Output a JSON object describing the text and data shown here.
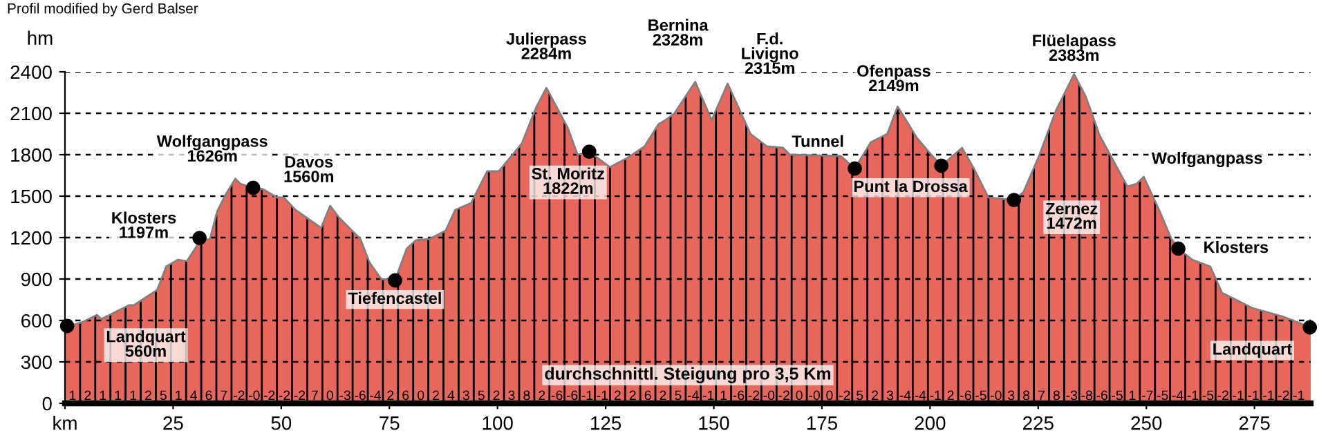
{
  "chart_data": [
    {
      "type": "area",
      "ylabel": "hm",
      "xlim": [
        0,
        288
      ],
      "ylim": [
        0,
        2400
      ],
      "xticks": [
        {
          "value": 0,
          "label": "km"
        },
        25,
        50,
        75,
        100,
        125,
        150,
        175,
        200,
        225,
        250,
        275
      ],
      "yticks": [
        0,
        300,
        600,
        900,
        1200,
        1500,
        1800,
        2100,
        2400
      ],
      "grid": "y",
      "series": [
        {
          "color": "#e8675c",
          "x": [
            0,
            4.2,
            7.4,
            8.4,
            11.6,
            14.8,
            15.9,
            21.3,
            23.4,
            26.1,
            28.2,
            31.1,
            33.5,
            35.2,
            37.3,
            39.4,
            40.5,
            43.5,
            45.8,
            49,
            50.6,
            53.3,
            59.2,
            61.3,
            63.5,
            68.3,
            70.4,
            73.1,
            76.3,
            79,
            81.1,
            84.3,
            88,
            90.2,
            93.9,
            97.6,
            100.3,
            105.6,
            108.9,
            111.3,
            116.3,
            118.5,
            121.2,
            126,
            130.2,
            134,
            137.2,
            138.8,
            140.9,
            145.7,
            149.5,
            153.2,
            158.5,
            162.3,
            166,
            167.6,
            179.4,
            182.6,
            186.3,
            190.1,
            192.5,
            197,
            199.7,
            202.6,
            207.4,
            210.3,
            213.5,
            219.4,
            221.6,
            225.3,
            229.1,
            233.3,
            236,
            239.2,
            243,
            245.6,
            247.8,
            249.4,
            253.1,
            255.8,
            257.4,
            260.6,
            264.8,
            267.5,
            274.5,
            281.4,
            288
          ],
          "values": [
            550,
            590,
            640,
            610,
            660,
            710,
            710,
            820,
            990,
            1040,
            1030,
            1170,
            1190,
            1390,
            1520,
            1626,
            1590,
            1560,
            1550,
            1490,
            1490,
            1400,
            1270,
            1430,
            1340,
            1190,
            1020,
            900,
            890,
            1120,
            1180,
            1190,
            1250,
            1400,
            1450,
            1680,
            1680,
            1880,
            2140,
            2284,
            1990,
            1800,
            1822,
            1710,
            1780,
            1860,
            2020,
            2050,
            2100,
            2328,
            2050,
            2315,
            1950,
            1860,
            1850,
            1800,
            1790,
            1700,
            1890,
            1950,
            2149,
            1920,
            1820,
            1720,
            1850,
            1690,
            1490,
            1472,
            1530,
            1800,
            2120,
            2383,
            2220,
            1940,
            1720,
            1570,
            1590,
            1640,
            1390,
            1190,
            1120,
            1040,
            990,
            800,
            690,
            630,
            550
          ]
        },
        {
          "type": "scatter",
          "color": "#000000",
          "marker": "circle",
          "x": [
            0.5,
            31.1,
            43.5,
            76.3,
            121.2,
            182.6,
            202.6,
            219.4,
            257.4,
            287.8
          ],
          "values": [
            560,
            1197,
            1560,
            890,
            1822,
            1700,
            1720,
            1472,
            1120,
            550
          ]
        }
      ],
      "ref_lines": [
        {
          "axis": "x",
          "value": 3.5
        },
        {
          "axis": "x",
          "value": 7
        },
        {
          "axis": "x",
          "value": 10.5
        },
        {
          "axis": "x",
          "value": 14
        },
        {
          "axis": "x",
          "value": 17.5
        },
        {
          "axis": "x",
          "value": 21
        },
        {
          "axis": "x",
          "value": 24.5
        },
        {
          "axis": "x",
          "value": 28
        },
        {
          "axis": "x",
          "value": 31.5
        },
        {
          "axis": "x",
          "value": 35
        },
        {
          "axis": "x",
          "value": 38.5
        },
        {
          "axis": "x",
          "value": 42
        },
        {
          "axis": "x",
          "value": 45.5
        },
        {
          "axis": "x",
          "value": 49
        },
        {
          "axis": "x",
          "value": 52.5
        },
        {
          "axis": "x",
          "value": 56
        },
        {
          "axis": "x",
          "value": 59.5
        },
        {
          "axis": "x",
          "value": 63
        },
        {
          "axis": "x",
          "value": 66.5
        },
        {
          "axis": "x",
          "value": 70
        },
        {
          "axis": "x",
          "value": 73.5
        },
        {
          "axis": "x",
          "value": 77
        },
        {
          "axis": "x",
          "value": 80.5
        },
        {
          "axis": "x",
          "value": 84
        },
        {
          "axis": "x",
          "value": 87.5
        },
        {
          "axis": "x",
          "value": 91
        },
        {
          "axis": "x",
          "value": 94.5
        },
        {
          "axis": "x",
          "value": 98
        },
        {
          "axis": "x",
          "value": 101.5
        },
        {
          "axis": "x",
          "value": 105
        },
        {
          "axis": "x",
          "value": 108.5
        },
        {
          "axis": "x",
          "value": 112
        },
        {
          "axis": "x",
          "value": 115.5
        },
        {
          "axis": "x",
          "value": 119
        },
        {
          "axis": "x",
          "value": 122.5
        },
        {
          "axis": "x",
          "value": 126
        },
        {
          "axis": "x",
          "value": 129.5
        },
        {
          "axis": "x",
          "value": 133
        },
        {
          "axis": "x",
          "value": 136.5
        },
        {
          "axis": "x",
          "value": 140
        },
        {
          "axis": "x",
          "value": 143.5
        },
        {
          "axis": "x",
          "value": 147
        },
        {
          "axis": "x",
          "value": 150.5
        },
        {
          "axis": "x",
          "value": 154
        },
        {
          "axis": "x",
          "value": 157.5
        },
        {
          "axis": "x",
          "value": 161
        },
        {
          "axis": "x",
          "value": 164.5
        },
        {
          "axis": "x",
          "value": 168
        },
        {
          "axis": "x",
          "value": 171.5
        },
        {
          "axis": "x",
          "value": 175
        },
        {
          "axis": "x",
          "value": 178.5
        },
        {
          "axis": "x",
          "value": 182
        },
        {
          "axis": "x",
          "value": 185.5
        },
        {
          "axis": "x",
          "value": 189
        },
        {
          "axis": "x",
          "value": 192.5
        },
        {
          "axis": "x",
          "value": 196
        },
        {
          "axis": "x",
          "value": 199.5
        },
        {
          "axis": "x",
          "value": 203
        },
        {
          "axis": "x",
          "value": 206.5
        },
        {
          "axis": "x",
          "value": 210
        },
        {
          "axis": "x",
          "value": 213.5
        },
        {
          "axis": "x",
          "value": 217
        },
        {
          "axis": "x",
          "value": 220.5
        },
        {
          "axis": "x",
          "value": 224
        },
        {
          "axis": "x",
          "value": 227.5
        },
        {
          "axis": "x",
          "value": 231
        },
        {
          "axis": "x",
          "value": 234.5
        },
        {
          "axis": "x",
          "value": 238
        },
        {
          "axis": "x",
          "value": 241.5
        },
        {
          "axis": "x",
          "value": 245
        },
        {
          "axis": "x",
          "value": 248.5
        },
        {
          "axis": "x",
          "value": 252
        },
        {
          "axis": "x",
          "value": 255.5
        },
        {
          "axis": "x",
          "value": 259
        },
        {
          "axis": "x",
          "value": 262.5
        },
        {
          "axis": "x",
          "value": 266
        },
        {
          "axis": "x",
          "value": 269.5
        },
        {
          "axis": "x",
          "value": 273
        },
        {
          "axis": "x",
          "value": 276.5
        },
        {
          "axis": "x",
          "value": 280
        },
        {
          "axis": "x",
          "value": 283.5
        }
      ],
      "annotations": [
        "Profil modified by Gerd Balser",
        "durchschnittl. Steigung pro 3,5 Km",
        {
          "text": "Landquart\n560m",
          "x": 0.5,
          "y": 560
        },
        {
          "text": "Klosters\n1197m",
          "x": 31.1,
          "y": 1197
        },
        {
          "text": "Wolfgangpass\n1626m",
          "x": 39.4,
          "y": 1626
        },
        {
          "text": "Davos\n1560m",
          "x": 43.5,
          "y": 1560
        },
        {
          "text": "Tiefencastel",
          "x": 76.3,
          "y": 890
        },
        {
          "text": "Julierpass\n2284m",
          "x": 111.3,
          "y": 2284
        },
        {
          "text": "St. Moritz\n1822m",
          "x": 121.2,
          "y": 1822
        },
        {
          "text": "Bernina\n2328m",
          "x": 145.7,
          "y": 2328
        },
        {
          "text": "F.d.\nLivigno\n2315m",
          "x": 153.2,
          "y": 2315
        },
        {
          "text": "Ofenpass\n2149m",
          "x": 192.5,
          "y": 2149
        },
        {
          "text": "Tunnel",
          "x": 179.4,
          "y": 1790
        },
        {
          "text": "Punt la Drossa",
          "x": 182.6,
          "y": 1700
        },
        {
          "text": "Zernez\n1472m",
          "x": 219.4,
          "y": 1472
        },
        {
          "text": "Flüelapass\n2383m",
          "x": 233.3,
          "y": 2383
        },
        {
          "text": "Wolfgangpass",
          "x": 249.4,
          "y": 1640
        },
        {
          "text": "Klosters",
          "x": 257.4,
          "y": 1120
        },
        {
          "text": "Landquart",
          "x": 287.8,
          "y": 550
        },
        {
          "text": "1",
          "x": 1.75,
          "y": 50
        },
        {
          "text": "2",
          "x": 5.25,
          "y": 50
        },
        {
          "text": "1",
          "x": 8.75,
          "y": 50
        },
        {
          "text": "1",
          "x": 12.25,
          "y": 50
        },
        {
          "text": "1",
          "x": 15.75,
          "y": 50
        },
        {
          "text": "2",
          "x": 19.25,
          "y": 50
        },
        {
          "text": "5",
          "x": 22.75,
          "y": 50
        },
        {
          "text": "1",
          "x": 26.25,
          "y": 50
        },
        {
          "text": "4",
          "x": 29.75,
          "y": 50
        },
        {
          "text": "6",
          "x": 33.25,
          "y": 50
        },
        {
          "text": "7",
          "x": 36.75,
          "y": 50
        },
        {
          "text": "-2",
          "x": 40.25,
          "y": 50
        },
        {
          "text": "-0",
          "x": 43.75,
          "y": 50
        },
        {
          "text": "-2",
          "x": 47.25,
          "y": 50
        },
        {
          "text": "-2",
          "x": 50.75,
          "y": 50
        },
        {
          "text": "-2",
          "x": 54.25,
          "y": 50
        },
        {
          "text": "7",
          "x": 57.75,
          "y": 50
        },
        {
          "text": "0",
          "x": 61.25,
          "y": 50
        },
        {
          "text": "-3",
          "x": 64.75,
          "y": 50
        },
        {
          "text": "-6",
          "x": 68.25,
          "y": 50
        },
        {
          "text": "-4",
          "x": 71.75,
          "y": 50
        },
        {
          "text": "2",
          "x": 75.25,
          "y": 50
        },
        {
          "text": "6",
          "x": 78.75,
          "y": 50
        },
        {
          "text": "0",
          "x": 82.25,
          "y": 50
        },
        {
          "text": "2",
          "x": 85.75,
          "y": 50
        },
        {
          "text": "4",
          "x": 89.25,
          "y": 50
        },
        {
          "text": "3",
          "x": 92.75,
          "y": 50
        },
        {
          "text": "5",
          "x": 96.25,
          "y": 50
        },
        {
          "text": "2",
          "x": 99.75,
          "y": 50
        },
        {
          "text": "3",
          "x": 103.25,
          "y": 50
        },
        {
          "text": "8",
          "x": 106.75,
          "y": 50
        },
        {
          "text": "2",
          "x": 110.25,
          "y": 50
        },
        {
          "text": "-6",
          "x": 113.75,
          "y": 50
        },
        {
          "text": "-6",
          "x": 117.25,
          "y": 50
        },
        {
          "text": "-1",
          "x": 120.75,
          "y": 50
        },
        {
          "text": "-1",
          "x": 124.25,
          "y": 50
        },
        {
          "text": "2",
          "x": 127.75,
          "y": 50
        },
        {
          "text": "2",
          "x": 131.25,
          "y": 50
        },
        {
          "text": "6",
          "x": 134.75,
          "y": 50
        },
        {
          "text": "2",
          "x": 138.25,
          "y": 50
        },
        {
          "text": "5",
          "x": 141.75,
          "y": 50
        },
        {
          "text": "-4",
          "x": 145.25,
          "y": 50
        },
        {
          "text": "-1",
          "x": 148.75,
          "y": 50
        },
        {
          "text": "1",
          "x": 152.25,
          "y": 50
        },
        {
          "text": "-6",
          "x": 155.75,
          "y": 50
        },
        {
          "text": "-2",
          "x": 159.25,
          "y": 50
        },
        {
          "text": "-0",
          "x": 162.75,
          "y": 50
        },
        {
          "text": "-2",
          "x": 166.25,
          "y": 50
        },
        {
          "text": "0",
          "x": 169.75,
          "y": 50
        },
        {
          "text": "-0",
          "x": 173.25,
          "y": 50
        },
        {
          "text": "0",
          "x": 176.75,
          "y": 50
        },
        {
          "text": "-2",
          "x": 180.25,
          "y": 50
        },
        {
          "text": "5",
          "x": 183.75,
          "y": 50
        },
        {
          "text": "2",
          "x": 187.25,
          "y": 50
        },
        {
          "text": "3",
          "x": 190.75,
          "y": 50
        },
        {
          "text": "-4",
          "x": 194.25,
          "y": 50
        },
        {
          "text": "-4",
          "x": 197.75,
          "y": 50
        },
        {
          "text": "-1",
          "x": 201.25,
          "y": 50
        },
        {
          "text": "2",
          "x": 204.75,
          "y": 50
        },
        {
          "text": "-6",
          "x": 208.25,
          "y": 50
        },
        {
          "text": "-5",
          "x": 211.75,
          "y": 50
        },
        {
          "text": "-0",
          "x": 215.25,
          "y": 50
        },
        {
          "text": "3",
          "x": 218.75,
          "y": 50
        },
        {
          "text": "8",
          "x": 222.25,
          "y": 50
        },
        {
          "text": "7",
          "x": 225.75,
          "y": 50
        },
        {
          "text": "8",
          "x": 229.25,
          "y": 50
        },
        {
          "text": "-3",
          "x": 232.75,
          "y": 50
        },
        {
          "text": "-8",
          "x": 236.25,
          "y": 50
        },
        {
          "text": "-6",
          "x": 239.75,
          "y": 50
        },
        {
          "text": "-5",
          "x": 243.25,
          "y": 50
        },
        {
          "text": "1",
          "x": 246.75,
          "y": 50
        },
        {
          "text": "-7",
          "x": 250.25,
          "y": 50
        },
        {
          "text": "-5",
          "x": 253.75,
          "y": 50
        },
        {
          "text": "-4",
          "x": 257.25,
          "y": 50
        },
        {
          "text": "-1",
          "x": 260.75,
          "y": 50
        },
        {
          "text": "-5",
          "x": 264.25,
          "y": 50
        },
        {
          "text": "-2",
          "x": 267.75,
          "y": 50
        },
        {
          "text": "-1",
          "x": 271.25,
          "y": 50
        },
        {
          "text": "-1",
          "x": 274.75,
          "y": 50
        },
        {
          "text": "-1",
          "x": 278.25,
          "y": 50
        },
        {
          "text": "-2",
          "x": 281.75,
          "y": 50
        },
        {
          "text": "-1",
          "x": 285.25,
          "y": 50
        }
      ]
    }
  ]
}
